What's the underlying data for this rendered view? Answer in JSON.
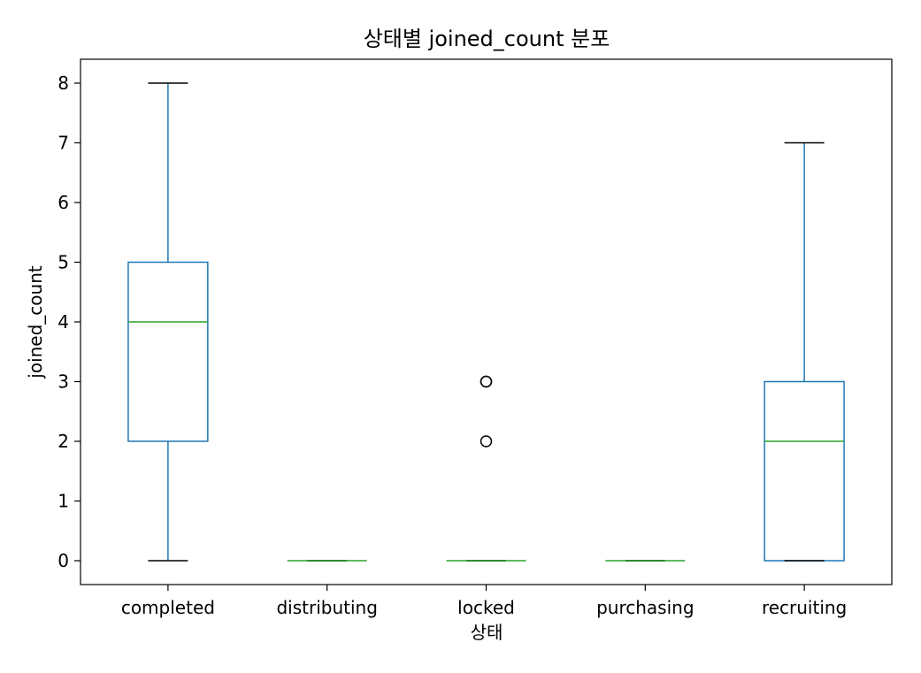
{
  "chart_data": {
    "type": "box",
    "title": "상태별 joined_count 분포",
    "xlabel": "상태",
    "ylabel": "joined_count",
    "ylim": [
      -0.4,
      8.4
    ],
    "yticks": [
      0,
      1,
      2,
      3,
      4,
      5,
      6,
      7,
      8
    ],
    "grid": false,
    "colors": {
      "box": "#1f77b4",
      "median": "#2ca02c",
      "cap": "#000000",
      "flier": "#000000"
    },
    "categories": [
      "completed",
      "distributing",
      "locked",
      "purchasing",
      "recruiting"
    ],
    "boxes": [
      {
        "category": "completed",
        "whisker_low": 0,
        "q1": 2,
        "median": 4,
        "q3": 5,
        "whisker_high": 8,
        "fliers": []
      },
      {
        "category": "distributing",
        "whisker_low": 0,
        "q1": 0,
        "median": 0,
        "q3": 0,
        "whisker_high": 0,
        "fliers": []
      },
      {
        "category": "locked",
        "whisker_low": 0,
        "q1": 0,
        "median": 0,
        "q3": 0,
        "whisker_high": 0,
        "fliers": [
          2,
          3,
          3
        ]
      },
      {
        "category": "purchasing",
        "whisker_low": 0,
        "q1": 0,
        "median": 0,
        "q3": 0,
        "whisker_high": 0,
        "fliers": []
      },
      {
        "category": "recruiting",
        "whisker_low": 0,
        "q1": 0,
        "median": 2,
        "q3": 3,
        "whisker_high": 7,
        "fliers": []
      }
    ]
  }
}
